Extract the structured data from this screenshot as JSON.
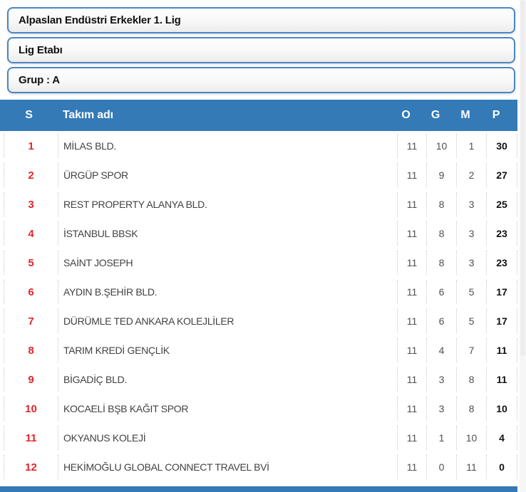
{
  "filters": {
    "league": "Alpaslan Endüstri Erkekler 1. Lig",
    "stage": "Lig Etabı",
    "group": "Grup : A"
  },
  "table": {
    "headers": {
      "rank": "S",
      "team": "Takım adı",
      "played": "O",
      "won": "G",
      "lost": "M",
      "points": "P"
    },
    "rows": [
      {
        "rank": "1",
        "team": "MİLAS BLD.",
        "played": "11",
        "won": "10",
        "lost": "1",
        "points": "30"
      },
      {
        "rank": "2",
        "team": "ÜRGÜP SPOR",
        "played": "11",
        "won": "9",
        "lost": "2",
        "points": "27"
      },
      {
        "rank": "3",
        "team": "REST PROPERTY ALANYA BLD.",
        "played": "11",
        "won": "8",
        "lost": "3",
        "points": "25"
      },
      {
        "rank": "4",
        "team": "İSTANBUL BBSK",
        "played": "11",
        "won": "8",
        "lost": "3",
        "points": "23"
      },
      {
        "rank": "5",
        "team": "SAİNT JOSEPH",
        "played": "11",
        "won": "8",
        "lost": "3",
        "points": "23"
      },
      {
        "rank": "6",
        "team": "AYDIN B.ŞEHİR BLD.",
        "played": "11",
        "won": "6",
        "lost": "5",
        "points": "17"
      },
      {
        "rank": "7",
        "team": "DÜRÜMLE TED ANKARA KOLEJLİLER",
        "played": "11",
        "won": "6",
        "lost": "5",
        "points": "17"
      },
      {
        "rank": "8",
        "team": "TARIM KREDİ GENÇLİK",
        "played": "11",
        "won": "4",
        "lost": "7",
        "points": "11"
      },
      {
        "rank": "9",
        "team": "BİGADİÇ BLD.",
        "played": "11",
        "won": "3",
        "lost": "8",
        "points": "11"
      },
      {
        "rank": "10",
        "team": "KOCAELİ BŞB KAĞIT SPOR",
        "played": "11",
        "won": "3",
        "lost": "8",
        "points": "10"
      },
      {
        "rank": "11",
        "team": "OKYANUS KOLEJİ",
        "played": "11",
        "won": "1",
        "lost": "10",
        "points": "4"
      },
      {
        "rank": "12",
        "team": "HEKİMOĞLU GLOBAL CONNECT TRAVEL BVİ",
        "played": "11",
        "won": "0",
        "lost": "11",
        "points": "0"
      }
    ]
  },
  "colors": {
    "header_blue": "#337ab7",
    "rank_red": "#e2262b",
    "box_border_blue": "#4a86c4"
  }
}
